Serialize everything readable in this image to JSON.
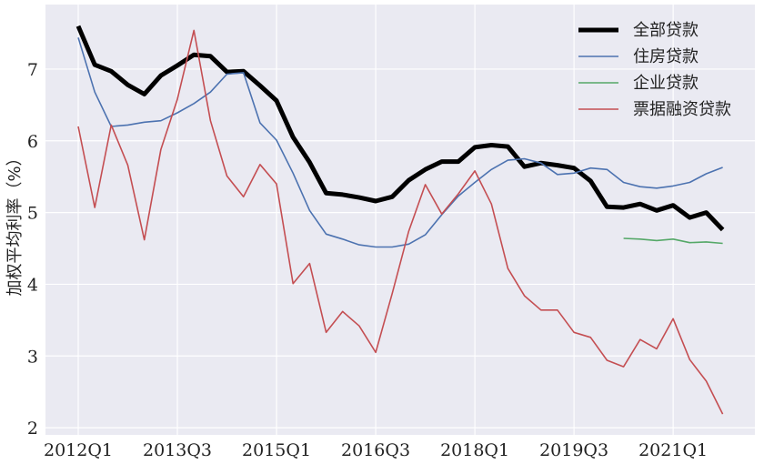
{
  "chart_data": {
    "type": "line",
    "title": "",
    "xlabel": "",
    "ylabel": "加权平均利率（%）",
    "ylim": [
      1.9,
      7.9
    ],
    "yticks": [
      2,
      3,
      4,
      5,
      6,
      7
    ],
    "xtick_labels": [
      "2012Q1",
      "2013Q3",
      "2015Q1",
      "2016Q3",
      "2018Q1",
      "2019Q3",
      "2021Q1"
    ],
    "xtick_index": [
      0,
      6,
      12,
      18,
      24,
      30,
      36
    ],
    "x_start": "2012Q1",
    "x_end": "2021Q4",
    "grid": true,
    "legend_position": "top-right",
    "series": [
      {
        "name": "全部贷款",
        "color": "#000000",
        "start_index": 0,
        "values": [
          7.6,
          7.06,
          6.97,
          6.78,
          6.65,
          6.91,
          7.05,
          7.2,
          7.18,
          6.96,
          6.97,
          6.77,
          6.56,
          6.05,
          5.7,
          5.27,
          5.25,
          5.21,
          5.16,
          5.22,
          5.45,
          5.6,
          5.71,
          5.71,
          5.91,
          5.94,
          5.92,
          5.64,
          5.69,
          5.66,
          5.62,
          5.44,
          5.08,
          5.07,
          5.12,
          5.03,
          5.1,
          4.93,
          5.0,
          4.76
        ]
      },
      {
        "name": "住房贷款",
        "color": "#4c72b0",
        "start_index": 0,
        "values": [
          7.44,
          6.68,
          6.2,
          6.22,
          6.26,
          6.28,
          6.39,
          6.52,
          6.68,
          6.93,
          6.95,
          6.25,
          6.01,
          5.55,
          5.03,
          4.7,
          4.63,
          4.55,
          4.52,
          4.52,
          4.56,
          4.69,
          4.97,
          5.23,
          5.42,
          5.6,
          5.73,
          5.75,
          5.69,
          5.53,
          5.55,
          5.62,
          5.6,
          5.42,
          5.36,
          5.34,
          5.37,
          5.42,
          5.54,
          5.63
        ]
      },
      {
        "name": "企业贷款",
        "color": "#55a868",
        "start_index": 33,
        "values": [
          4.64,
          4.63,
          4.61,
          4.63,
          4.58,
          4.59,
          4.57
        ]
      },
      {
        "name": "票据融资贷款",
        "color": "#c44e52",
        "start_index": 0,
        "values": [
          6.2,
          5.07,
          6.22,
          5.66,
          4.62,
          5.88,
          6.58,
          7.54,
          6.28,
          5.51,
          5.22,
          5.67,
          5.4,
          4.01,
          4.29,
          3.33,
          3.62,
          3.42,
          3.05,
          3.87,
          4.74,
          5.39,
          4.98,
          5.26,
          5.58,
          5.12,
          4.22,
          3.84,
          3.64,
          3.64,
          3.33,
          3.26,
          2.94,
          2.85,
          3.23,
          3.1,
          3.52,
          2.95,
          2.65,
          2.19
        ]
      }
    ]
  }
}
